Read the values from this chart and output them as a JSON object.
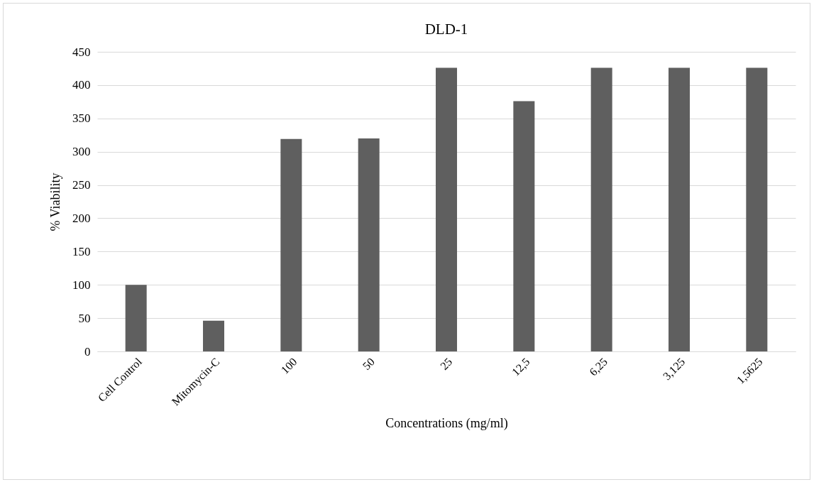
{
  "chart_data": {
    "type": "bar",
    "title": "DLD-1",
    "xlabel": "Concentrations (mg/ml)",
    "ylabel": "% Viability",
    "categories": [
      "Cell Control",
      "Mitomycin-C",
      "100",
      "50",
      "25",
      "12,5",
      "6,25",
      "3,125",
      "1,5625"
    ],
    "values": [
      100,
      46,
      319,
      320,
      426,
      376,
      426,
      426,
      426
    ],
    "color": "#5f5f5f",
    "ylim": [
      0,
      450
    ],
    "yticks": [
      0,
      50,
      100,
      150,
      200,
      250,
      300,
      350,
      400,
      450
    ],
    "grid": "y"
  }
}
